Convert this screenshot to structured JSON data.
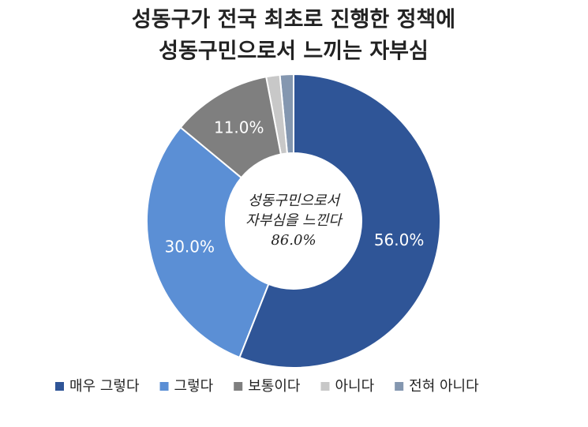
{
  "chart_data": {
    "type": "donut",
    "title": [
      "성동구가 전국 최초로 진행한 정책에",
      "성동구민으로서 느끼는 자부심"
    ],
    "categories": [
      "매우 그렇다",
      "그렇다",
      "보통이다",
      "아니다",
      "전혀 아니다"
    ],
    "values": [
      56.0,
      30.0,
      11.0,
      1.5,
      1.5
    ],
    "value_labels": [
      "56.0%",
      "30.0%",
      "11.0%",
      null,
      null
    ],
    "colors": [
      "#2f5597",
      "#5b8fd5",
      "#7f7f7f",
      "#c8c8c8",
      "#8497b0"
    ],
    "center_text": [
      "성동구민으로서",
      "자부심을 느낀다"
    ],
    "center_value": {
      "value": 86.0,
      "label": "86.0%"
    }
  }
}
